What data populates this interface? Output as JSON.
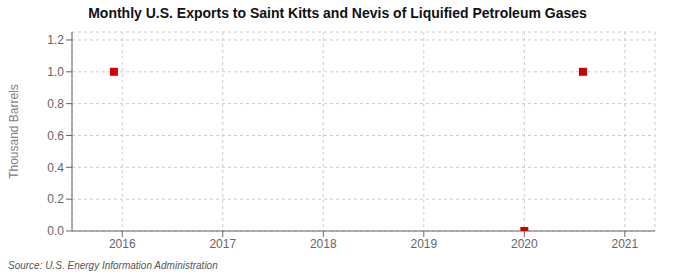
{
  "chart_data": {
    "type": "scatter",
    "title": "Monthly U.S. Exports to Saint Kitts and Nevis of Liquified Petroleum Gases",
    "ylabel": "Thousand Barrels",
    "annotations": [
      "Source: U.S. Energy Information Administration"
    ],
    "x": [
      2015.917,
      2020.0,
      2020.583
    ],
    "values": [
      1.0,
      0.0,
      1.0
    ],
    "color": "#CC0000",
    "marker": "square",
    "xlim": [
      2015.5,
      2021.3
    ],
    "ylim": [
      0.0,
      1.25
    ],
    "xticks": [
      2016,
      2017,
      2018,
      2019,
      2020,
      2021
    ],
    "yticks": [
      {
        "value": 0.0,
        "label": "0.0"
      },
      0.2,
      0.4,
      0.6,
      0.8,
      {
        "value": 1.0,
        "label": "1.0"
      },
      1.2
    ],
    "grid": true
  }
}
